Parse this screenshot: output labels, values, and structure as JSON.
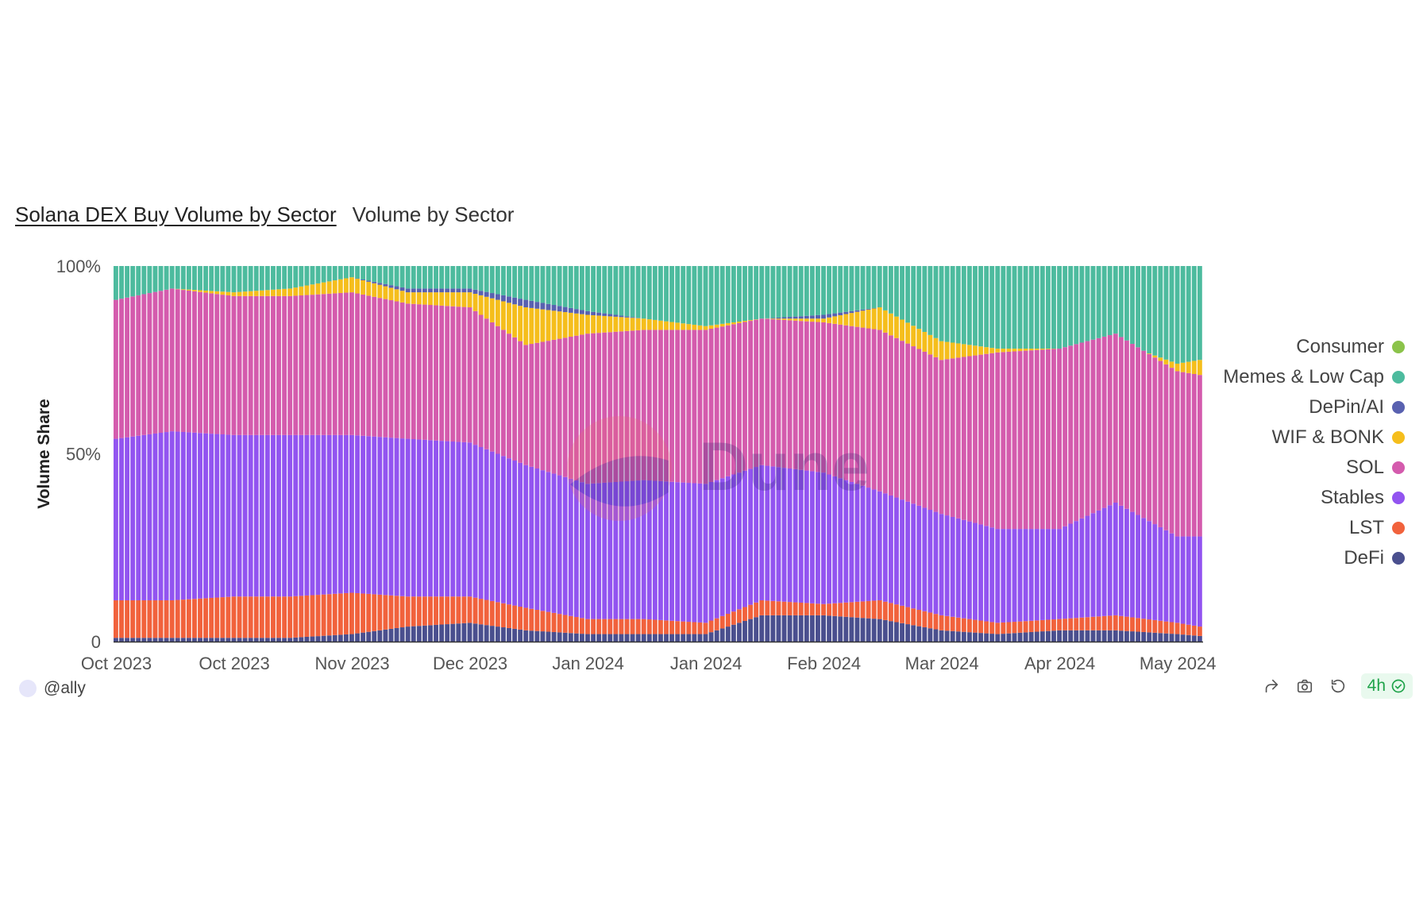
{
  "header": {
    "title": "Solana DEX Buy Volume by Sector",
    "subtitle": "Volume by Sector"
  },
  "watermark": "Dune",
  "footer": {
    "author": "@ally",
    "badge": "4h"
  },
  "icons": [
    "share-icon",
    "camera-icon",
    "refresh-icon",
    "check-circle-icon"
  ],
  "chart_data": {
    "type": "bar",
    "stacked": true,
    "normalized": true,
    "ylabel": "Volume Share",
    "xlabel": "",
    "ylim": [
      0,
      100
    ],
    "ytick_labels": [
      "0",
      "50%",
      "100%"
    ],
    "x_tick_labels": [
      "Oct 2023",
      "Oct 2023",
      "Nov 2023",
      "Dec 2023",
      "Jan 2024",
      "Jan 2024",
      "Feb 2024",
      "Mar 2024",
      "Apr 2024",
      "May 2024"
    ],
    "x_tick_days": [
      0,
      21,
      42,
      63,
      84,
      105,
      126,
      147,
      168,
      189
    ],
    "days": 194,
    "legend": [
      "Consumer",
      "Memes & Low Cap",
      "DePin/AI",
      "WIF & BONK",
      "SOL",
      "Stables",
      "LST",
      "DeFi"
    ],
    "legend_position": "right",
    "stack_order": [
      "DeFi",
      "LST",
      "Stables",
      "SOL",
      "WIF & BONK",
      "DePin/AI",
      "Memes & Low Cap",
      "Consumer"
    ],
    "colors": {
      "Consumer": "#8bc34a",
      "Memes & Low Cap": "#4dbb9e",
      "DePin/AI": "#5961b0",
      "WIF & BONK": "#f5be1c",
      "SOL": "#d45bad",
      "Stables": "#9254f0",
      "LST": "#f1623c",
      "DeFi": "#4a4f8e"
    },
    "anchor_days": [
      0,
      10,
      21,
      31,
      42,
      52,
      63,
      73,
      84,
      94,
      105,
      115,
      126,
      136,
      147,
      157,
      168,
      178,
      189,
      193
    ],
    "anchor_boundaries": {
      "DeFi": [
        1,
        1,
        1,
        1,
        2,
        4,
        5,
        3,
        2,
        2,
        2,
        7,
        7,
        6,
        3,
        2,
        3,
        3,
        2,
        1.5
      ],
      "LST": [
        11,
        11,
        12,
        12,
        13,
        12,
        12,
        9,
        6,
        6,
        5,
        11,
        10,
        11,
        7,
        5,
        6,
        7,
        5,
        4
      ],
      "Stables": [
        54,
        56,
        55,
        55,
        55,
        54,
        53,
        47,
        42,
        43,
        42,
        47,
        45,
        40,
        34,
        30,
        30,
        37,
        28,
        28
      ],
      "SOL": [
        91,
        94,
        92,
        92,
        93,
        90,
        89,
        79,
        82,
        83,
        83,
        86,
        85,
        83,
        75,
        77,
        78,
        82,
        72,
        71
      ],
      "WIF & BONK": [
        91,
        94,
        93,
        94,
        97,
        93,
        93,
        89,
        87,
        86,
        84,
        86,
        86,
        89,
        80,
        78,
        78,
        80,
        74,
        75
      ],
      "DePin/AI": [
        91,
        94,
        93,
        94,
        97,
        94,
        94,
        91,
        88,
        86,
        84,
        86,
        87,
        89,
        80,
        78,
        78,
        80,
        74,
        75
      ],
      "Memes & Low Cap": [
        100,
        100,
        100,
        100,
        100,
        100,
        100,
        100,
        100,
        100,
        100,
        100,
        100,
        100,
        100,
        100,
        100,
        100,
        100,
        100
      ],
      "Consumer": [
        100,
        100,
        100,
        100,
        100,
        100,
        100,
        100,
        100,
        100,
        100,
        100,
        100,
        100,
        100,
        100,
        100,
        100,
        100,
        100
      ]
    }
  }
}
